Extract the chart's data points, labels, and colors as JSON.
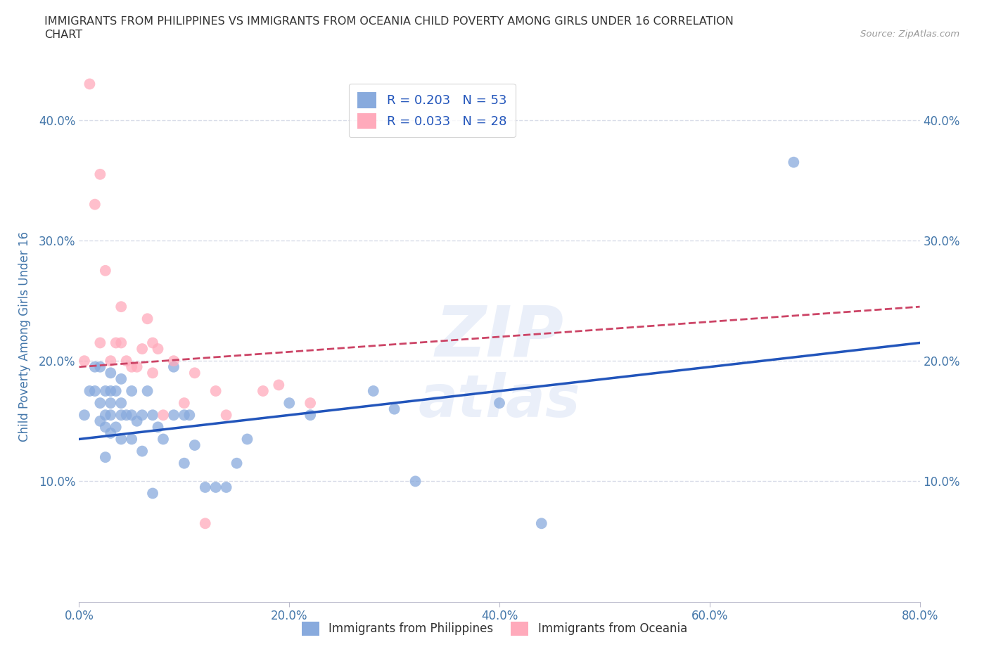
{
  "title_line1": "IMMIGRANTS FROM PHILIPPINES VS IMMIGRANTS FROM OCEANIA CHILD POVERTY AMONG GIRLS UNDER 16 CORRELATION",
  "title_line2": "CHART",
  "source": "Source: ZipAtlas.com",
  "ylabel": "Child Poverty Among Girls Under 16",
  "xlim": [
    0.0,
    0.8
  ],
  "ylim": [
    0.0,
    0.44
  ],
  "xticks": [
    0.0,
    0.2,
    0.4,
    0.6,
    0.8
  ],
  "yticks": [
    0.0,
    0.1,
    0.2,
    0.3,
    0.4
  ],
  "ytick_labels": [
    "",
    "10.0%",
    "20.0%",
    "30.0%",
    "40.0%"
  ],
  "xtick_labels": [
    "0.0%",
    "20.0%",
    "40.0%",
    "60.0%",
    "80.0%"
  ],
  "grid_color": "#d8dce8",
  "background_color": "#ffffff",
  "legend_r1": "R = 0.203",
  "legend_n1": "N = 53",
  "legend_r2": "R = 0.033",
  "legend_n2": "N = 28",
  "blue_scatter_color": "#88aadd",
  "pink_scatter_color": "#ffaabb",
  "blue_line_color": "#2255bb",
  "pink_line_color": "#cc4466",
  "axis_label_color": "#4477aa",
  "title_color": "#333333",
  "philippines_x": [
    0.005,
    0.01,
    0.015,
    0.015,
    0.02,
    0.02,
    0.02,
    0.025,
    0.025,
    0.025,
    0.025,
    0.03,
    0.03,
    0.03,
    0.03,
    0.03,
    0.035,
    0.035,
    0.04,
    0.04,
    0.04,
    0.04,
    0.045,
    0.05,
    0.05,
    0.05,
    0.055,
    0.06,
    0.06,
    0.065,
    0.07,
    0.07,
    0.075,
    0.08,
    0.09,
    0.09,
    0.1,
    0.1,
    0.105,
    0.11,
    0.12,
    0.13,
    0.14,
    0.15,
    0.16,
    0.2,
    0.22,
    0.28,
    0.3,
    0.32,
    0.4,
    0.44,
    0.68
  ],
  "philippines_y": [
    0.155,
    0.175,
    0.175,
    0.195,
    0.15,
    0.165,
    0.195,
    0.12,
    0.145,
    0.155,
    0.175,
    0.14,
    0.155,
    0.165,
    0.175,
    0.19,
    0.145,
    0.175,
    0.135,
    0.155,
    0.165,
    0.185,
    0.155,
    0.135,
    0.155,
    0.175,
    0.15,
    0.125,
    0.155,
    0.175,
    0.09,
    0.155,
    0.145,
    0.135,
    0.155,
    0.195,
    0.115,
    0.155,
    0.155,
    0.13,
    0.095,
    0.095,
    0.095,
    0.115,
    0.135,
    0.165,
    0.155,
    0.175,
    0.16,
    0.1,
    0.165,
    0.065,
    0.365
  ],
  "oceania_x": [
    0.005,
    0.01,
    0.015,
    0.02,
    0.02,
    0.025,
    0.03,
    0.035,
    0.04,
    0.04,
    0.045,
    0.05,
    0.055,
    0.06,
    0.065,
    0.07,
    0.07,
    0.075,
    0.08,
    0.09,
    0.1,
    0.11,
    0.12,
    0.13,
    0.14,
    0.175,
    0.19,
    0.22
  ],
  "oceania_y": [
    0.2,
    0.43,
    0.33,
    0.215,
    0.355,
    0.275,
    0.2,
    0.215,
    0.215,
    0.245,
    0.2,
    0.195,
    0.195,
    0.21,
    0.235,
    0.19,
    0.215,
    0.21,
    0.155,
    0.2,
    0.165,
    0.19,
    0.065,
    0.175,
    0.155,
    0.175,
    0.18,
    0.165
  ],
  "philippines_line_x": [
    0.0,
    0.8
  ],
  "philippines_line_y": [
    0.135,
    0.215
  ],
  "oceania_line_x": [
    0.0,
    0.8
  ],
  "oceania_line_y": [
    0.195,
    0.245
  ]
}
